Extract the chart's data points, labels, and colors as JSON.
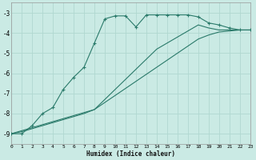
{
  "xlabel": "Humidex (Indice chaleur)",
  "bg_color": "#caeae4",
  "grid_color": "#b0d8d0",
  "line_color": "#2a7a6a",
  "xlim": [
    0,
    23
  ],
  "ylim": [
    -9.5,
    -2.5
  ],
  "yticks": [
    -9,
    -8,
    -7,
    -6,
    -5,
    -4,
    -3
  ],
  "xticks": [
    0,
    1,
    2,
    3,
    4,
    5,
    6,
    7,
    8,
    9,
    10,
    11,
    12,
    13,
    14,
    15,
    16,
    17,
    18,
    19,
    20,
    21,
    22,
    23
  ],
  "line1_x": [
    0,
    1,
    2,
    3,
    4,
    5,
    6,
    7,
    8,
    9,
    10,
    11,
    12,
    13,
    14,
    15,
    16,
    17,
    18,
    19,
    20,
    21,
    22,
    23
  ],
  "line1_y": [
    -9.0,
    -9.0,
    -8.6,
    -8.0,
    -7.7,
    -6.8,
    -6.2,
    -5.7,
    -4.5,
    -3.3,
    -3.15,
    -3.15,
    -3.7,
    -3.1,
    -3.1,
    -3.1,
    -3.1,
    -3.1,
    -3.2,
    -3.5,
    -3.6,
    -3.75,
    -3.85,
    -3.85
  ],
  "line2_x": [
    0,
    1,
    2,
    3,
    4,
    5,
    6,
    7,
    8,
    9,
    10,
    11,
    12,
    13,
    14,
    15,
    16,
    17,
    18,
    19,
    20,
    21,
    22,
    23
  ],
  "line2_y": [
    -9.0,
    -8.85,
    -8.7,
    -8.55,
    -8.4,
    -8.25,
    -8.1,
    -7.95,
    -7.8,
    -7.3,
    -6.8,
    -6.3,
    -5.8,
    -5.3,
    -4.8,
    -4.5,
    -4.2,
    -3.9,
    -3.6,
    -3.75,
    -3.85,
    -3.85,
    -3.85,
    -3.85
  ],
  "line3_x": [
    0,
    1,
    2,
    3,
    4,
    5,
    6,
    7,
    8,
    9,
    10,
    11,
    12,
    13,
    14,
    15,
    16,
    17,
    18,
    19,
    20,
    21,
    22,
    23
  ],
  "line3_y": [
    -9.0,
    -8.9,
    -8.75,
    -8.6,
    -8.45,
    -8.3,
    -8.15,
    -8.0,
    -7.8,
    -7.45,
    -7.1,
    -6.75,
    -6.4,
    -6.05,
    -5.7,
    -5.35,
    -5.0,
    -4.65,
    -4.3,
    -4.1,
    -3.95,
    -3.9,
    -3.85,
    -3.85
  ]
}
